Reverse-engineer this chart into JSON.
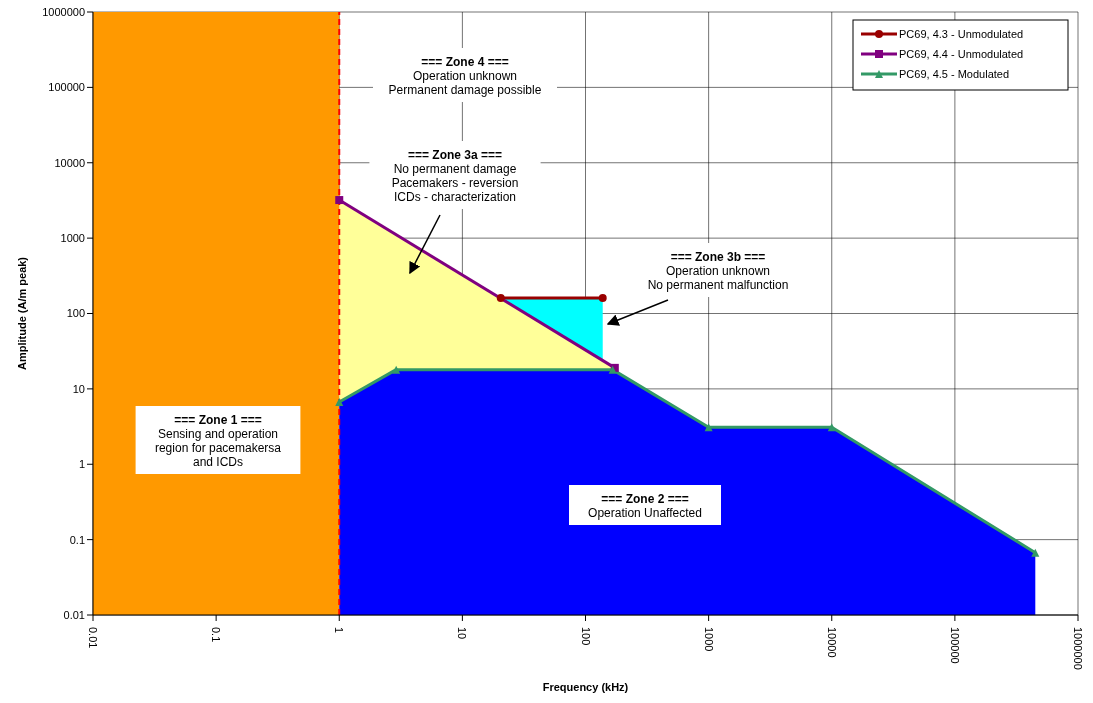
{
  "chart_data": {
    "type": "line",
    "xlabel": "Frequency (kHz)",
    "ylabel": "Amplitude (A/m peak)",
    "log": "xy",
    "xlim": [
      0.01,
      1000000
    ],
    "ylim": [
      0.01,
      1000000
    ],
    "xticks": [
      0.01,
      0.1,
      1,
      10,
      100,
      1000,
      10000,
      100000,
      1000000
    ],
    "yticks": [
      0.01,
      0.1,
      1,
      10,
      100,
      1000,
      10000,
      100000,
      1000000
    ],
    "grid": true,
    "legend": "top right",
    "line_style": "solid",
    "series": [
      {
        "type": "area",
        "color": "#00ffff",
        "x": [
          20.5,
          138
        ],
        "values": [
          160,
          160
        ]
      },
      {
        "type": "area",
        "color": "#ffff99",
        "x": [
          1,
          173
        ],
        "values": [
          3200,
          19
        ]
      },
      {
        "type": "area",
        "color": "#0000ff",
        "x": [
          1,
          2.9,
          166,
          1000,
          10000,
          450000
        ],
        "values": [
          6.7,
          18,
          18,
          3.1,
          3.1,
          0.067
        ]
      },
      {
        "name": "PC69, 4.3 - Unmodulated",
        "color": "#990000",
        "marker": "circle",
        "x": [
          20.5,
          138
        ],
        "values": [
          160,
          160
        ]
      },
      {
        "name": "PC69, 4.4 - Unmodulated",
        "color": "#800080",
        "marker": "square",
        "x": [
          1,
          173
        ],
        "values": [
          3200,
          19
        ]
      },
      {
        "name": "PC69, 4.5 - Modulated",
        "color": "#339966",
        "marker": "triangle",
        "x": [
          1,
          2.9,
          166,
          1000,
          10000,
          450000
        ],
        "values": [
          6.7,
          18,
          18,
          3.1,
          3.1,
          0.067
        ]
      }
    ],
    "bands": [
      {
        "axis": "x",
        "from": 0.01,
        "to": 1,
        "color": "#ff9900"
      }
    ],
    "ref_lines": [
      {
        "axis": "x",
        "value": 1,
        "color": "#ff0000",
        "line_style": "dashed"
      }
    ],
    "annotations": [
      "=== Zone 1 ===\nSensing and operation\nregion for pacemakersa\nand ICDs",
      "=== Zone 4 ===\nOperation unknown\nPermanent damage possible",
      "=== Zone 3a ===\nNo permanent damage\nPacemakers - reversion\nICDs - characterization",
      "=== Zone 3b ===\nOperation unknown\nNo permanent malfunction",
      "=== Zone 2 ===\nOperation Unaffected"
    ]
  }
}
